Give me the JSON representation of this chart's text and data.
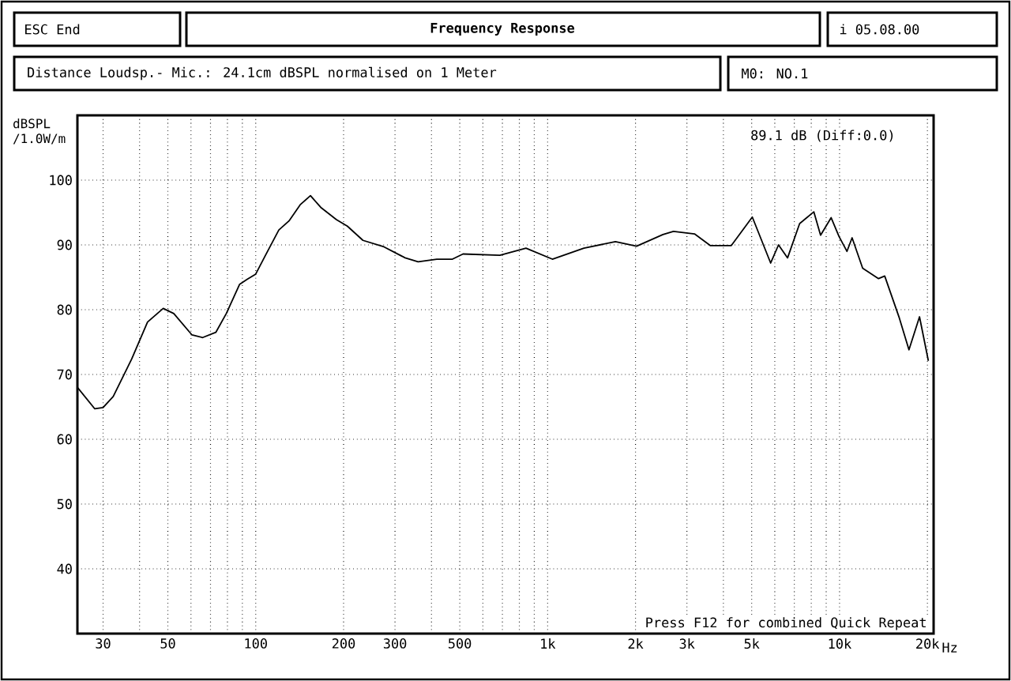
{
  "chart_data": {
    "type": "line",
    "title": "Frequency Response",
    "subtitle": "Distance Loudsp.- Mic.: 24.1cm dBSPL normalised on 1 Meter",
    "ylabel": "dBSPL /1.0W/m",
    "annotations": [
      "ESC End",
      "i 05.08.00",
      "M0: NO.1",
      "89.1 dB (Diff:0.0)",
      "Press F12 for combined Quick Repeat"
    ],
    "log": "x",
    "grid": true,
    "marker": "none",
    "line_style": "solid",
    "xlim": [
      24.5,
      21000
    ],
    "ylim": [
      30,
      110
    ],
    "xticks": [
      {
        "value": 30,
        "label": "30"
      },
      {
        "value": 40,
        "label": null
      },
      {
        "value": 50,
        "label": "50"
      },
      {
        "value": 60,
        "label": null
      },
      {
        "value": 70,
        "label": null
      },
      {
        "value": 80,
        "label": null
      },
      {
        "value": 90,
        "label": null
      },
      {
        "value": 100,
        "label": "100"
      },
      {
        "value": 200,
        "label": "200"
      },
      {
        "value": 300,
        "label": "300"
      },
      {
        "value": 400,
        "label": null
      },
      {
        "value": 500,
        "label": "500"
      },
      {
        "value": 600,
        "label": null
      },
      {
        "value": 700,
        "label": null
      },
      {
        "value": 800,
        "label": null
      },
      {
        "value": 900,
        "label": null
      },
      {
        "value": 1000,
        "label": "1k"
      },
      {
        "value": 2000,
        "label": "2k"
      },
      {
        "value": 3000,
        "label": "3k"
      },
      {
        "value": 4000,
        "label": null
      },
      {
        "value": 5000,
        "label": "5k"
      },
      {
        "value": 6000,
        "label": null
      },
      {
        "value": 7000,
        "label": null
      },
      {
        "value": 8000,
        "label": null
      },
      {
        "value": 9000,
        "label": null
      },
      {
        "value": 10000,
        "label": "10k"
      },
      {
        "value": 20000,
        "label": "20k"
      }
    ],
    "xlabel": "Hz",
    "yticks": [
      40,
      50,
      60,
      70,
      80,
      90,
      100
    ],
    "series": [
      {
        "color": "#000000",
        "x": [
          24.5,
          28.1,
          30,
          32.5,
          37.6,
          42.6,
          48.2,
          52.4,
          60.5,
          65.8,
          73,
          79.3,
          88,
          93.5,
          100,
          108,
          120,
          130,
          142,
          154,
          167,
          189,
          206,
          233,
          275,
          325,
          360,
          417,
          472,
          513,
          686,
          843,
          1038,
          1331,
          1707,
          2017,
          2483,
          2698,
          3185,
          3606,
          4259,
          5025,
          5808,
          6180,
          6637,
          7300,
          8166,
          8610,
          9360,
          9960,
          10600,
          11040,
          12000,
          13600,
          14280,
          16030,
          17290,
          18790,
          20150
        ],
        "values": [
          68.0,
          64.7,
          64.9,
          66.6,
          72.4,
          78.1,
          80.2,
          79.4,
          76.1,
          75.7,
          76.5,
          79.4,
          83.9,
          84.7,
          85.5,
          88.4,
          92.3,
          93.7,
          96.2,
          97.6,
          95.8,
          93.9,
          92.9,
          90.7,
          89.7,
          88.0,
          87.4,
          87.8,
          87.8,
          88.6,
          88.4,
          89.5,
          87.8,
          89.5,
          90.5,
          89.8,
          91.6,
          92.1,
          91.7,
          89.9,
          89.9,
          94.3,
          87.2,
          90.0,
          88.0,
          93.3,
          95.1,
          91.5,
          94.2,
          91.3,
          89.0,
          91.1,
          86.4,
          84.8,
          85.2,
          78.7,
          73.8,
          78.9,
          72.1
        ]
      }
    ]
  }
}
